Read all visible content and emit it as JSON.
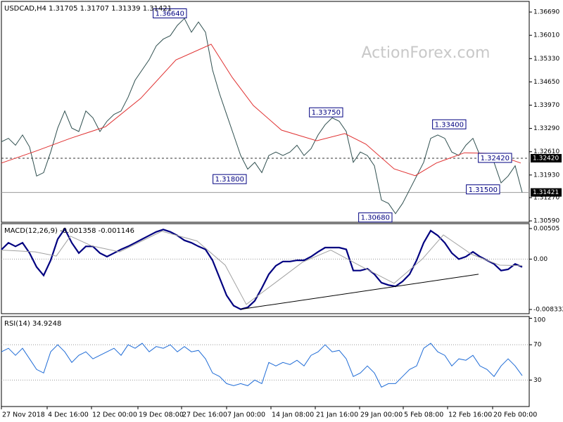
{
  "chart_data": [
    {
      "type": "line",
      "title": "USDCAD,H4  1.31705 1.31707 1.31339 1.31421",
      "watermark": "ActionForex.com",
      "xlim": [
        0,
        75
      ],
      "ylim": [
        1.3055,
        1.37
      ],
      "yticks": [
        {
          "value": 1.3669,
          "label": "1.36690"
        },
        {
          "value": 1.3601,
          "label": "1.36010"
        },
        {
          "value": 1.3533,
          "label": "1.35330"
        },
        {
          "value": 1.3465,
          "label": "1.34650"
        },
        {
          "value": 1.3397,
          "label": "1.33970"
        },
        {
          "value": 1.3329,
          "label": "1.33290"
        },
        {
          "value": 1.3261,
          "label": "1.32610"
        },
        {
          "value": 1.3193,
          "label": "1.31930"
        },
        {
          "value": 1.3127,
          "label": "1.31270"
        },
        {
          "value": 1.3059,
          "label": "1.30590"
        }
      ],
      "series": [
        {
          "color": "#2f4f4f",
          "values": [
            1.329,
            1.33,
            1.328,
            1.331,
            1.3275,
            1.319,
            1.32,
            1.326,
            1.333,
            1.338,
            1.333,
            1.332,
            1.338,
            1.336,
            1.332,
            1.335,
            1.337,
            1.338,
            1.342,
            1.347,
            1.35,
            1.353,
            1.357,
            1.359,
            1.36,
            1.363,
            1.365,
            1.361,
            1.364,
            1.361,
            1.35,
            1.343,
            1.337,
            1.331,
            1.325,
            1.321,
            1.323,
            1.32,
            1.325,
            1.326,
            1.325,
            1.326,
            1.328,
            1.325,
            1.327,
            1.331,
            1.334,
            1.336,
            1.335,
            1.332,
            1.323,
            1.326,
            1.325,
            1.322,
            1.312,
            1.311,
            1.308,
            1.311,
            1.315,
            1.319,
            1.323,
            1.33,
            1.331,
            1.33,
            1.326,
            1.325,
            1.328,
            1.33,
            1.325,
            1.324,
            1.323,
            1.317,
            1.319,
            1.322,
            1.3142
          ]
        },
        {
          "color": "#e03030",
          "x": [
            0,
            4.8,
            9.8,
            14.8,
            19.8,
            24.8,
            29.8,
            32.8,
            35.8,
            39.8,
            44.8,
            48.8,
            51.8,
            55.8,
            58.8,
            61.8,
            65.8,
            69.8,
            73.8
          ],
          "values": [
            1.3228,
            1.3262,
            1.33,
            1.3334,
            1.3417,
            1.3529,
            1.3575,
            1.3478,
            1.3396,
            1.3324,
            1.3293,
            1.3314,
            1.3283,
            1.3211,
            1.3191,
            1.3228,
            1.3258,
            1.3256,
            1.3228
          ]
        }
      ],
      "hlines": [
        {
          "value": 1.3242,
          "label": "1.32420",
          "style": "dashed"
        },
        {
          "value": 1.31421,
          "label": "1.31421",
          "style": "solid"
        }
      ],
      "annotations": [
        {
          "text": "1.36640",
          "x": 26.3,
          "value": 1.3664
        },
        {
          "text": "1.31800",
          "x": 34.8,
          "value": 1.318
        },
        {
          "text": "1.33750",
          "x": 48.5,
          "value": 1.3375
        },
        {
          "text": "1.30680",
          "x": 55.5,
          "value": 1.3068
        },
        {
          "text": "1.33400",
          "x": 66,
          "value": 1.334
        },
        {
          "text": "1.32420",
          "x": 72.5,
          "value": 1.3242
        },
        {
          "text": "1.31500",
          "x": 70.8,
          "value": 1.315
        }
      ]
    },
    {
      "type": "line",
      "title": "MACD(12,26,9) -0.001358 -0.001146",
      "xlim": [
        0,
        75
      ],
      "ylim": [
        -0.00903,
        0.00586
      ],
      "yticks": [
        0.00505,
        {
          "value": 0,
          "label": "0.00"
        },
        -0.008332
      ],
      "levels": [
        0
      ],
      "series": [
        {
          "color": "#000080",
          "values": [
            0.00156,
            0.0027,
            0.0021,
            0.0027,
            0.001,
            -0.0013,
            -0.0027,
            -0.0002,
            0.0033,
            0.005,
            0.0027,
            0.001,
            0.0021,
            0.0021,
            0.001,
            0.0004,
            0.001,
            0.0016,
            0.0021,
            0.0027,
            0.0033,
            0.0039,
            0.0045,
            0.0049,
            0.0045,
            0.0039,
            0.0031,
            0.0027,
            0.0021,
            0.0016,
            -0.0002,
            -0.0031,
            -0.006,
            -0.0077,
            -0.0083,
            -0.008,
            -0.0069,
            -0.0048,
            -0.0025,
            -0.0011,
            -0.0004,
            -0.0004,
            -0.0002,
            -0.0002,
            0.0004,
            0.0012,
            0.0019,
            0.0019,
            0.0019,
            0.0016,
            -0.0019,
            -0.0019,
            -0.0016,
            -0.0025,
            -0.0039,
            -0.0043,
            -0.0045,
            -0.0037,
            -0.0025,
            -0.0002,
            0.0027,
            0.0047,
            0.0039,
            0.0027,
            0.001,
            0,
            0.0004,
            0.0012,
            0.0004,
            -0.0002,
            -0.0008,
            -0.0019,
            -0.0017,
            -0.0008,
            -0.0013
          ]
        },
        {
          "color": "#a0a0a0",
          "x": [
            0,
            4.8,
            7.8,
            9.8,
            12.8,
            16.8,
            22.8,
            27.8,
            31.8,
            34.8,
            38.8,
            42.8,
            46.8,
            50.8,
            55.8,
            59.8,
            62.8,
            66.8,
            70.8,
            74
          ],
          "values": [
            0.0015,
            0.0012,
            0.0005,
            0.0038,
            0.0022,
            0.0012,
            0.0046,
            0.003,
            -0.001,
            -0.0075,
            -0.004,
            -0.0005,
            0.0015,
            -0.001,
            -0.004,
            0,
            0.004,
            0.0008,
            -0.001,
            -0.0011
          ]
        },
        {
          "color": "#000000",
          "x": [
            34,
            67.8
          ],
          "values": [
            -0.0083,
            -0.0025
          ]
        }
      ]
    },
    {
      "type": "line",
      "title": "RSI(14) 34.9248",
      "xlim": [
        0,
        75
      ],
      "ylim": [
        0,
        102
      ],
      "yticks": [
        100,
        70,
        30
      ],
      "levels": [
        70,
        30
      ],
      "series": [
        {
          "color": "#1e6bd6",
          "values": [
            62,
            66,
            58,
            66,
            54,
            42,
            38,
            62,
            70,
            62,
            50,
            58,
            62,
            54,
            58,
            62,
            66,
            58,
            70,
            66,
            71.6,
            62,
            68,
            66,
            70,
            62,
            68,
            62,
            63.6,
            54,
            38,
            34,
            26,
            23.6,
            26,
            23.6,
            30,
            26,
            50,
            46,
            50,
            47.6,
            52.4,
            46,
            58,
            62,
            70,
            62,
            63.6,
            54,
            34,
            38,
            46,
            38,
            22,
            26,
            26,
            34,
            42,
            46,
            66,
            71.6,
            62,
            58,
            46,
            54,
            52.4,
            58,
            46,
            42,
            34,
            46,
            54,
            46,
            35
          ]
        }
      ],
      "xticks": [
        {
          "value": 0,
          "label": "27 Nov 2018"
        },
        {
          "value": 6.5,
          "label": "4 Dec 16:00"
        },
        {
          "value": 12.8,
          "label": "12 Dec 00:00"
        },
        {
          "value": 19.4,
          "label": "19 Dec 08:00"
        },
        {
          "value": 25.6,
          "label": "27 Dec 16:00"
        },
        {
          "value": 32,
          "label": "7 Jan 00:00"
        },
        {
          "value": 38.3,
          "label": "14 Jan 08:00"
        },
        {
          "value": 44.6,
          "label": "21 Jan 16:00"
        },
        {
          "value": 50.9,
          "label": "29 Jan 00:00"
        },
        {
          "value": 57.1,
          "label": "5 Feb 08:00"
        },
        {
          "value": 63.4,
          "label": "12 Feb 16:00"
        },
        {
          "value": 69.8,
          "label": "20 Feb 00:00"
        }
      ]
    }
  ]
}
